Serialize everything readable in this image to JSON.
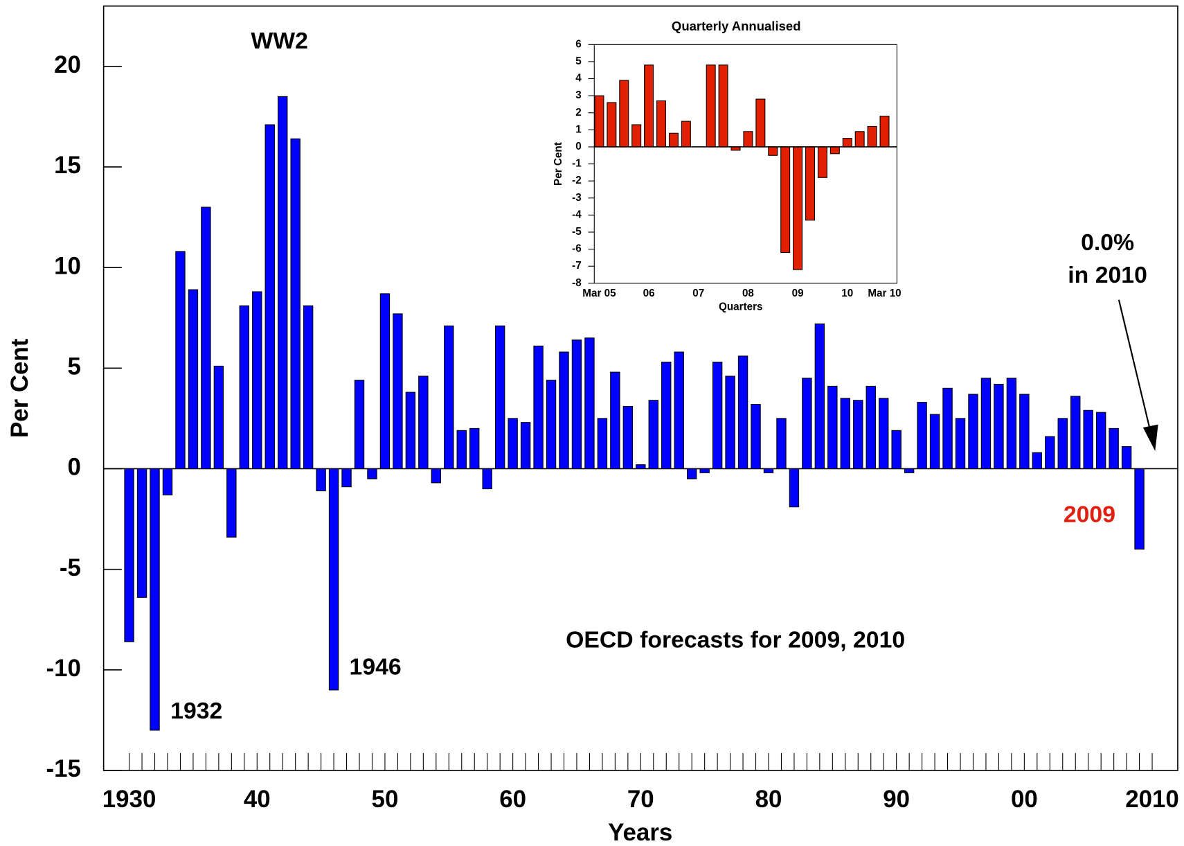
{
  "chart_data": [
    {
      "type": "bar",
      "ylabel": "Per Cent",
      "xlabel": "Years",
      "categories": [
        1930,
        1931,
        1932,
        1933,
        1934,
        1935,
        1936,
        1937,
        1938,
        1939,
        1940,
        1941,
        1942,
        1943,
        1944,
        1945,
        1946,
        1947,
        1948,
        1949,
        1950,
        1951,
        1952,
        1953,
        1954,
        1955,
        1956,
        1957,
        1958,
        1959,
        1960,
        1961,
        1962,
        1963,
        1964,
        1965,
        1966,
        1967,
        1968,
        1969,
        1970,
        1971,
        1972,
        1973,
        1974,
        1975,
        1976,
        1977,
        1978,
        1979,
        1980,
        1981,
        1982,
        1983,
        1984,
        1985,
        1986,
        1987,
        1988,
        1989,
        1990,
        1991,
        1992,
        1993,
        1994,
        1995,
        1996,
        1997,
        1998,
        1999,
        2000,
        2001,
        2002,
        2003,
        2004,
        2005,
        2006,
        2007,
        2008,
        2009,
        2010
      ],
      "values": [
        -8.6,
        -6.4,
        -13.0,
        -1.3,
        10.8,
        8.9,
        13.0,
        5.1,
        -3.4,
        8.1,
        8.8,
        17.1,
        18.5,
        16.4,
        8.1,
        -1.1,
        -11.0,
        -0.9,
        4.4,
        -0.5,
        8.7,
        7.7,
        3.8,
        4.6,
        -0.7,
        7.1,
        1.9,
        2.0,
        -1.0,
        7.1,
        2.5,
        2.3,
        6.1,
        4.4,
        5.8,
        6.4,
        6.5,
        2.5,
        4.8,
        3.1,
        0.2,
        3.4,
        5.3,
        5.8,
        -0.5,
        -0.2,
        5.3,
        4.6,
        5.6,
        3.2,
        -0.2,
        2.5,
        -1.9,
        4.5,
        7.2,
        4.1,
        3.5,
        3.4,
        4.1,
        3.5,
        1.9,
        -0.2,
        3.3,
        2.7,
        4.0,
        2.5,
        3.7,
        4.5,
        4.2,
        4.5,
        3.7,
        0.8,
        1.6,
        2.5,
        3.6,
        2.9,
        2.8,
        2.0,
        1.1,
        -4.0,
        0.0
      ],
      "color": "#0000ff",
      "xlim": [
        1928,
        2012
      ],
      "xticks": [
        1930,
        {
          "value": 1940,
          "label": "40"
        },
        {
          "value": 1950,
          "label": "50"
        },
        {
          "value": 1960,
          "label": "60"
        },
        {
          "value": 1970,
          "label": "70"
        },
        {
          "value": 1980,
          "label": "80"
        },
        {
          "value": 1990,
          "label": "90"
        },
        {
          "value": 2000,
          "label": "00"
        },
        2010
      ],
      "ylim": [
        -15,
        23
      ],
      "yticks": [
        -15,
        -10,
        -5,
        0,
        5,
        10,
        15,
        20
      ],
      "annotations": [
        {
          "text": "WW2",
          "color": "#000000"
        },
        {
          "text": "1932",
          "color": "#000000"
        },
        {
          "text": "1946",
          "color": "#000000"
        },
        {
          "text": "OECD forecasts for 2009, 2010",
          "color": "#000000"
        },
        {
          "text": "0.0%",
          "color": "#000000"
        },
        {
          "text": "in 2010",
          "color": "#000000"
        },
        {
          "text": "2009",
          "color": "#e02010"
        }
      ]
    },
    {
      "type": "bar",
      "title": "Quarterly Annualised",
      "ylabel": "Per Cent",
      "xlabel": "Quarters",
      "categories": [
        "Mar 05",
        null,
        null,
        null,
        "06",
        null,
        null,
        null,
        "07",
        null,
        null,
        null,
        "08",
        null,
        null,
        null,
        "09",
        null,
        null,
        null,
        "10",
        null,
        null,
        "Mar 10"
      ],
      "values": [
        3.0,
        2.6,
        3.9,
        1.3,
        4.8,
        2.7,
        0.8,
        1.5,
        0.0,
        4.8,
        4.8,
        -0.2,
        0.9,
        2.8,
        -0.5,
        -6.2,
        -7.2,
        -4.3,
        -1.8,
        -0.4,
        0.5,
        0.9,
        1.2,
        1.8
      ],
      "color": "#e02000",
      "ylim": [
        -8,
        6
      ],
      "yticks": [
        -8,
        -7,
        -6,
        -5,
        -4,
        -3,
        -2,
        -1,
        0,
        1,
        2,
        3,
        4,
        5,
        6
      ]
    }
  ]
}
